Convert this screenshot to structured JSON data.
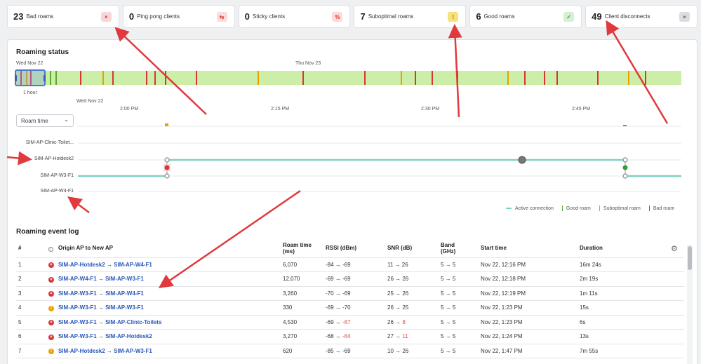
{
  "stats": [
    {
      "count": "23",
      "label": "Bad roams",
      "badge": "×",
      "badge_bg": "#f8d7d8",
      "badge_fg": "#d9343c"
    },
    {
      "count": "0",
      "label": "Ping pong clients",
      "badge": "⇆",
      "badge_bg": "#fbdcdc",
      "badge_fg": "#d9343c"
    },
    {
      "count": "0",
      "label": "Sticky clients",
      "badge": "%",
      "badge_bg": "#fbdcdc",
      "badge_fg": "#d9343c"
    },
    {
      "count": "7",
      "label": "Suboptimal roams",
      "badge": "!",
      "badge_bg": "#f6e27a",
      "badge_fg": "#b36b00"
    },
    {
      "count": "6",
      "label": "Good roams",
      "badge": "✓",
      "badge_bg": "#d6f0d6",
      "badge_fg": "#2e9e3c"
    },
    {
      "count": "49",
      "label": "Client disconnects",
      "badge": "×",
      "badge_bg": "#dadcdf",
      "badge_fg": "#555555"
    }
  ],
  "roaming_status": {
    "title": "Roaming status",
    "overview_date_left": "Wed Nov 22",
    "overview_date_mid": "Thu Nov 23",
    "window_label": "1 hour",
    "detail_date": "Wed Nov 22",
    "time_ticks": [
      "2:00 PM",
      "2:15 PM",
      "2:30 PM",
      "2:45 PM"
    ],
    "dropdown_value": "Roam time",
    "aps": [
      "SIM-AP-Clinic-Toilet...",
      "SIM-AP-Hotdesk2",
      "SIM-AP-W3-F1",
      "SIM-AP-W4-F1"
    ],
    "legend": {
      "active": "Active connection",
      "good": "Good roam",
      "suboptimal": "Suboptimal roam",
      "bad": "Bad roam"
    }
  },
  "event_log": {
    "title": "Roaming event log",
    "headers": {
      "num": "#",
      "ap": "Origin AP to New AP",
      "roam_time": "Roam time",
      "roam_time_unit": "(ms)",
      "rssi": "RSSI (dBm)",
      "snr": "SNR (dB)",
      "band": "Band",
      "band_unit": "(GHz)",
      "start": "Start time",
      "duration": "Duration"
    },
    "rows": [
      {
        "n": "1",
        "status": "bad",
        "from": "SIM-AP-Hotdesk2",
        "to": "SIM-AP-W4-F1",
        "roam": "6,070",
        "rssi_a": "-84",
        "rssi_b": "-69",
        "rssi_b_red": false,
        "snr_a": "11",
        "snr_b": "26",
        "snr_b_red": false,
        "band": "5 → 5",
        "start": "Nov 22, 12:16 PM",
        "dur": "16m 24s"
      },
      {
        "n": "2",
        "status": "bad",
        "from": "SIM-AP-W4-F1",
        "to": "SIM-AP-W3-F1",
        "roam": "12,070",
        "rssi_a": "-69",
        "rssi_b": "-69",
        "rssi_b_red": false,
        "snr_a": "26",
        "snr_b": "26",
        "snr_b_red": false,
        "band": "5 → 5",
        "start": "Nov 22, 12:18 PM",
        "dur": "2m 19s"
      },
      {
        "n": "3",
        "status": "bad",
        "from": "SIM-AP-W3-F1",
        "to": "SIM-AP-W4-F1",
        "roam": "3,260",
        "rssi_a": "-70",
        "rssi_b": "-69",
        "rssi_b_red": false,
        "snr_a": "25",
        "snr_b": "26",
        "snr_b_red": false,
        "band": "5 → 5",
        "start": "Nov 22, 12:19 PM",
        "dur": "1m 11s"
      },
      {
        "n": "4",
        "status": "suboptimal",
        "from": "SIM-AP-W3-F1",
        "to": "SIM-AP-W3-F1",
        "roam": "330",
        "rssi_a": "-69",
        "rssi_b": "-70",
        "rssi_b_red": false,
        "snr_a": "26",
        "snr_b": "25",
        "snr_b_red": false,
        "band": "5 → 5",
        "start": "Nov 22, 1:23 PM",
        "dur": "15s"
      },
      {
        "n": "5",
        "status": "bad",
        "from": "SIM-AP-W3-F1",
        "to": "SIM-AP-Clinic-Toilets",
        "roam": "4,530",
        "rssi_a": "-69",
        "rssi_b": "-87",
        "rssi_b_red": true,
        "snr_a": "26",
        "snr_b": "8",
        "snr_b_red": true,
        "band": "5 → 5",
        "start": "Nov 22, 1:23 PM",
        "dur": "6s"
      },
      {
        "n": "6",
        "status": "bad",
        "from": "SIM-AP-W3-F1",
        "to": "SIM-AP-Hotdesk2",
        "roam": "3,270",
        "rssi_a": "-68",
        "rssi_b": "-84",
        "rssi_b_red": true,
        "snr_a": "27",
        "snr_b": "11",
        "snr_b_red": true,
        "band": "5 → 5",
        "start": "Nov 22, 1:24 PM",
        "dur": "13s"
      },
      {
        "n": "7",
        "status": "suboptimal",
        "from": "SIM-AP-Hotdesk2",
        "to": "SIM-AP-W3-F1",
        "roam": "620",
        "rssi_a": "-85",
        "rssi_b": "-69",
        "rssi_b_red": false,
        "snr_a": "10",
        "snr_b": "26",
        "snr_b_red": false,
        "band": "5 → 5",
        "start": "Nov 22, 1:47 PM",
        "dur": "7m 55s"
      }
    ]
  },
  "colors": {
    "bad": "#d9343c",
    "suboptimal": "#e8a100",
    "good": "#5aa832",
    "active": "#7fd0c0",
    "timeline_bg": "#cdeea6",
    "link": "#2a58b8",
    "annotation_arrow": "#e0393e"
  }
}
